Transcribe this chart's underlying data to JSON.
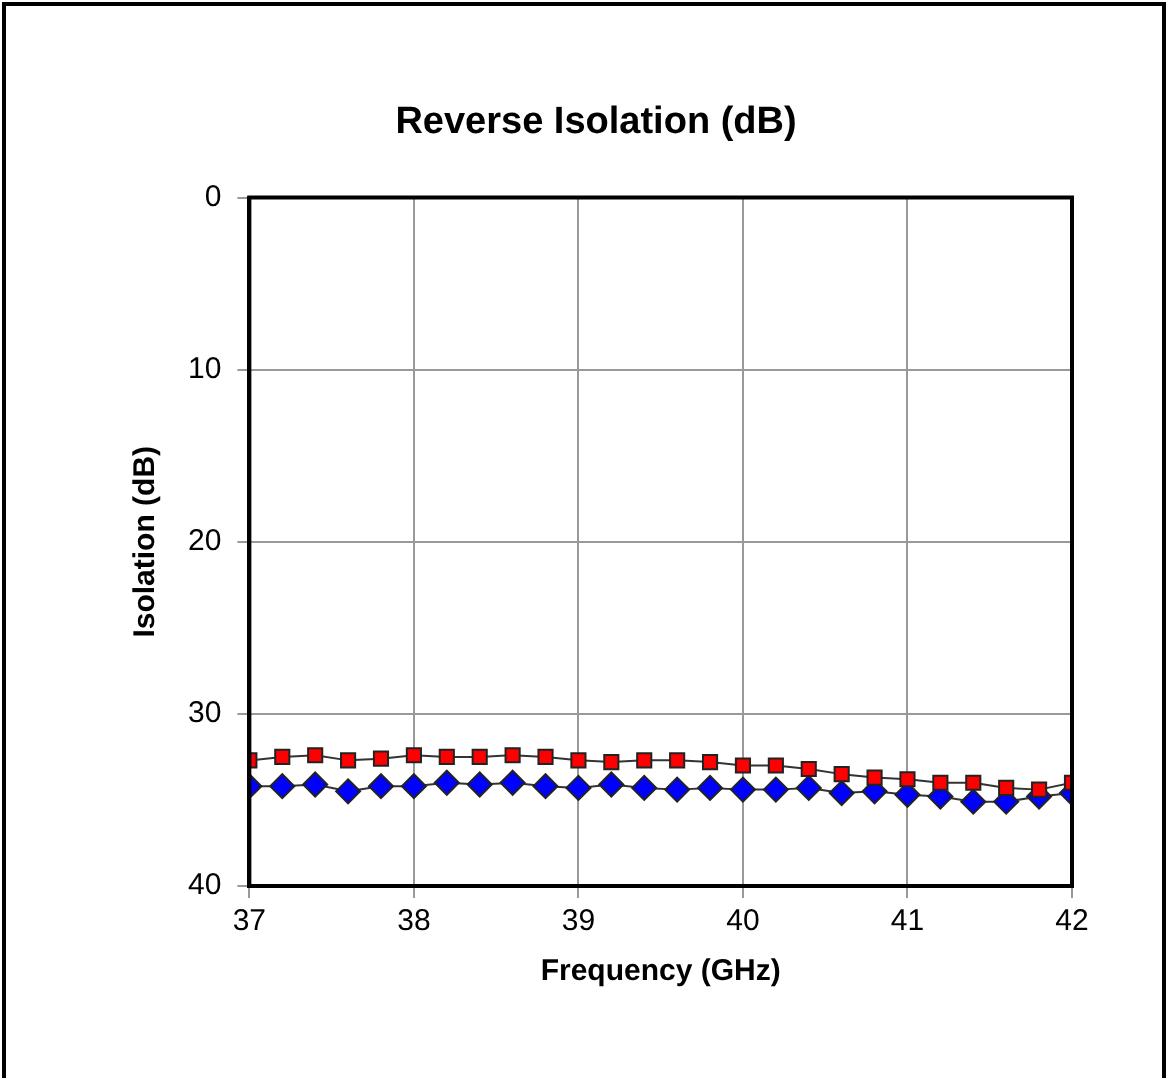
{
  "chart_data": {
    "type": "line",
    "title": "Reverse Isolation (dB)",
    "xlabel": "Frequency (GHz)",
    "ylabel": "Isolation (dB)",
    "x": [
      37,
      37.2,
      37.4,
      37.6,
      37.8,
      38,
      38.2,
      38.4,
      38.6,
      38.8,
      39,
      39.2,
      39.4,
      39.6,
      39.8,
      40,
      40.2,
      40.4,
      40.6,
      40.8,
      41,
      41.2,
      41.4,
      41.6,
      41.8,
      42
    ],
    "series": [
      {
        "color": "#ff0000",
        "marker": "square",
        "values": [
          32.7,
          32.5,
          32.4,
          32.7,
          32.6,
          32.4,
          32.5,
          32.5,
          32.4,
          32.5,
          32.7,
          32.8,
          32.7,
          32.7,
          32.8,
          33.0,
          33.0,
          33.2,
          33.5,
          33.7,
          33.8,
          34.0,
          34.0,
          34.3,
          34.4,
          34.0
        ]
      },
      {
        "color": "#0000ff",
        "marker": "diamond",
        "values": [
          34.2,
          34.2,
          34.1,
          34.5,
          34.2,
          34.2,
          34.0,
          34.1,
          34.0,
          34.2,
          34.3,
          34.1,
          34.3,
          34.4,
          34.3,
          34.4,
          34.4,
          34.3,
          34.6,
          34.5,
          34.7,
          34.8,
          35.1,
          35.1,
          34.8,
          34.6
        ]
      }
    ],
    "xlim": [
      37,
      42
    ],
    "xticks": [
      37,
      38,
      39,
      40,
      41,
      42
    ],
    "ylim": [
      40,
      0
    ],
    "yticks": [
      0,
      10,
      20,
      30,
      40
    ],
    "grid": true,
    "legend": false,
    "line_style": "solid"
  }
}
